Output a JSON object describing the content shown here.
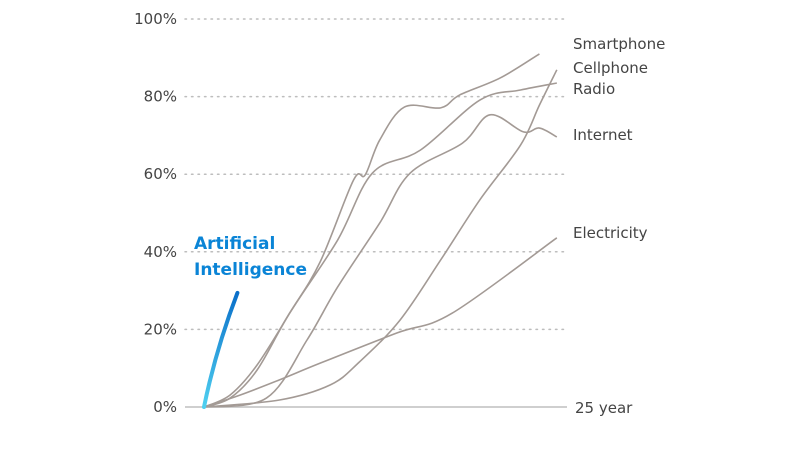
{
  "chart_data": {
    "type": "line",
    "title": "",
    "xlabel": "",
    "ylabel": "",
    "xlim": [
      0,
      25
    ],
    "ylim": [
      0,
      100
    ],
    "x_end_label": "25 year",
    "yticks": [
      0,
      20,
      40,
      60,
      80,
      100
    ],
    "ytick_labels": [
      "0%",
      "20%",
      "40%",
      "60%",
      "80%",
      "100%"
    ],
    "grid": "horizontal dotted",
    "line_color": "#a39a95",
    "series": [
      {
        "name": "Smartphone",
        "x": [
          0,
          1.8,
          3.65,
          5.9,
          8,
          10.3,
          11.1,
          12.1,
          13.8,
          16.3,
          17.6,
          20.4,
          23.1
        ],
        "y": [
          0,
          3.1,
          10.8,
          24.2,
          37.4,
          58.5,
          59.8,
          68.8,
          77.3,
          77.1,
          80.4,
          84.8,
          91
        ]
      },
      {
        "name": "Cellphone",
        "x": [
          0,
          5.2,
          8.7,
          10.7,
          13.5,
          16.3,
          19,
          21.8,
          23.1,
          24.3
        ],
        "y": [
          0,
          1.8,
          5.7,
          11.6,
          22.4,
          37.9,
          53.4,
          67.5,
          77.8,
          86.9
        ]
      },
      {
        "name": "Radio",
        "x": [
          0,
          1.8,
          3.65,
          5.9,
          9.2,
          11.6,
          14.9,
          19,
          21.8,
          24.3
        ],
        "y": [
          0,
          2.3,
          9.5,
          24.2,
          43,
          60.3,
          66.2,
          79.1,
          81.7,
          83.5
        ]
      },
      {
        "name": "Internet",
        "x": [
          0,
          4.3,
          7.1,
          9.2,
          12.1,
          14.2,
          17.8,
          19.7,
          22,
          23.1,
          24.3
        ],
        "y": [
          0,
          2.3,
          17.3,
          30.9,
          47.4,
          60.3,
          68,
          75.3,
          70.9,
          71.9,
          69.6
        ]
      },
      {
        "name": "Electricity",
        "x": [
          0,
          2.5,
          5.2,
          8,
          13.3,
          17.1,
          24.3
        ],
        "y": [
          0,
          3.1,
          7,
          11.3,
          19.1,
          24.2,
          43.6
        ]
      }
    ],
    "highlight": {
      "name_lines": [
        "Artificial",
        "Intelligence"
      ],
      "x": [
        0,
        2.3
      ],
      "y": [
        0,
        29.4
      ],
      "color_start": "#4fd0f0",
      "color_end": "#0a6fc9"
    }
  }
}
